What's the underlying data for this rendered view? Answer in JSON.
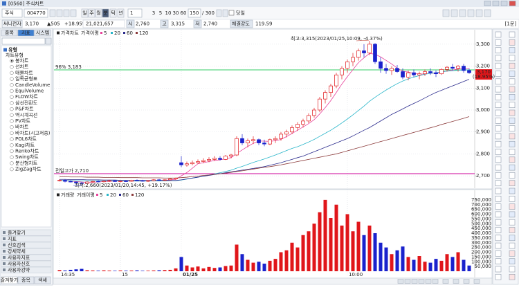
{
  "window": {
    "title": "[0560] 주식차트"
  },
  "toolbar": {
    "market": "주식",
    "code": "004770",
    "periods": [
      "일",
      "주",
      "월",
      "분",
      "틱",
      "년"
    ],
    "interval": "1",
    "quick_intervals": [
      "3",
      "5",
      "10",
      "30",
      "60"
    ],
    "count": "150",
    "max_count": "/ 300",
    "today": "당일",
    "unit": "[1분]"
  },
  "quote": {
    "name": "써니전자",
    "price": "3,170",
    "change": "▲505",
    "change_pct": "+18.95%",
    "volume": "21,021,657",
    "open_label": "시",
    "open": "2,760",
    "high_label": "고",
    "high": "3,315",
    "low_label": "저",
    "low": "2,740",
    "strength_label": "체결강도",
    "strength": "119.59"
  },
  "left_panel": {
    "tabs": [
      "종목",
      "지표",
      "시스템"
    ],
    "tree": [
      "유형",
      "차트유형"
    ],
    "items": [
      "봉차트",
      "선차트",
      "매물차트",
      "일목균형표",
      "CandleVolume",
      "EquiVolume",
      "FLOW차트",
      "삼선전환도",
      "P&F차트",
      "역시계곡선",
      "PV차트",
      "바차트",
      "바차트(시고저종)",
      "POL6차트",
      "Kagi차트",
      "Renko차트",
      "Swing차트",
      "분산형차트",
      "ZigZag차트"
    ],
    "sections": [
      "즐겨찾기",
      "지표",
      "신호검색",
      "강세약세",
      "사용자지표",
      "사용자신호",
      "사용자강약"
    ],
    "bottom_tabs": [
      "즐겨찾기",
      "종목",
      "색세"
    ]
  },
  "chart_data": [
    {
      "type": "candlestick",
      "legend_title": "가격차트",
      "ma_label": "가격이평",
      "up_color": "#e0161a",
      "down_color": "#1a22cc",
      "grid": true,
      "ylim": [
        2650,
        3350
      ],
      "yticks": [
        {
          "value": 2700,
          "label": "2,700"
        },
        {
          "value": 2800,
          "label": "2,800"
        },
        {
          "value": 2900,
          "label": "2,900"
        },
        {
          "value": 3000,
          "label": "3,000"
        },
        {
          "value": 3100,
          "label": "3,100"
        },
        {
          "value": 3200,
          "label": "3,200"
        },
        {
          "value": 3300,
          "label": "3,300"
        }
      ],
      "open": [
        2680,
        2680,
        2675,
        2672,
        2668,
        2665,
        2672,
        2675,
        2673,
        2676,
        2678,
        2674,
        2676,
        2675,
        2680,
        2678,
        2676,
        2678,
        2682,
        2680,
        2682,
        2686,
        2760,
        2750,
        2755,
        2760,
        2765,
        2770,
        2775,
        2780,
        2775,
        2790,
        2795,
        2870,
        2850,
        2860,
        2865,
        2850,
        2845,
        2865,
        2870,
        2890,
        2900,
        2920,
        2935,
        2950,
        2975,
        3000,
        3050,
        3080,
        3110,
        3160,
        3190,
        3220,
        3240,
        3270,
        3260,
        3300,
        3220,
        3190,
        3180,
        3190,
        3175,
        3150,
        3170,
        3160,
        3165,
        3175,
        3170,
        3165,
        3185,
        3195,
        3190,
        3200,
        3180
      ],
      "high": [
        2685,
        2685,
        2680,
        2675,
        2672,
        2675,
        2678,
        2680,
        2678,
        2682,
        2680,
        2678,
        2680,
        2682,
        2684,
        2682,
        2680,
        2685,
        2686,
        2684,
        2690,
        2692,
        2790,
        2765,
        2770,
        2775,
        2780,
        2785,
        2790,
        2790,
        2795,
        2800,
        2880,
        2890,
        2870,
        2880,
        2870,
        2865,
        2870,
        2880,
        2900,
        2910,
        2930,
        2945,
        2960,
        2985,
        3010,
        3060,
        3090,
        3120,
        3170,
        3200,
        3230,
        3260,
        3280,
        3300,
        3315,
        3305,
        3240,
        3210,
        3200,
        3205,
        3190,
        3180,
        3185,
        3175,
        3185,
        3190,
        3180,
        3190,
        3200,
        3210,
        3205,
        3210,
        3190
      ],
      "low": [
        2675,
        2670,
        2670,
        2665,
        2660,
        2665,
        2668,
        2670,
        2670,
        2672,
        2672,
        2670,
        2672,
        2673,
        2676,
        2674,
        2672,
        2675,
        2678,
        2676,
        2680,
        2682,
        2740,
        2742,
        2748,
        2755,
        2758,
        2762,
        2768,
        2770,
        2772,
        2780,
        2790,
        2840,
        2830,
        2845,
        2840,
        2835,
        2840,
        2850,
        2860,
        2875,
        2890,
        2905,
        2920,
        2940,
        2965,
        2990,
        3030,
        3060,
        3100,
        3140,
        3170,
        3200,
        3225,
        3240,
        3250,
        3210,
        3170,
        3165,
        3160,
        3170,
        3140,
        3135,
        3150,
        3140,
        3155,
        3160,
        3150,
        3160,
        3175,
        3180,
        3175,
        3170,
        3165
      ],
      "close": [
        2680,
        2675,
        2672,
        2668,
        2665,
        2672,
        2675,
        2673,
        2676,
        2678,
        2674,
        2676,
        2675,
        2680,
        2678,
        2676,
        2678,
        2682,
        2680,
        2682,
        2686,
        2690,
        2750,
        2755,
        2760,
        2765,
        2770,
        2775,
        2780,
        2775,
        2790,
        2795,
        2870,
        2850,
        2860,
        2865,
        2850,
        2845,
        2865,
        2870,
        2890,
        2900,
        2920,
        2935,
        2950,
        2975,
        3000,
        3050,
        3080,
        3110,
        3160,
        3190,
        3220,
        3240,
        3270,
        3260,
        3300,
        3220,
        3190,
        3180,
        3190,
        3175,
        3150,
        3170,
        3160,
        3165,
        3175,
        3170,
        3165,
        3185,
        3195,
        3190,
        3200,
        3180,
        3170
      ],
      "series": [
        {
          "name": "5",
          "color": "#e8409a",
          "values": [
            2680,
            2678,
            2676,
            2674,
            2672,
            2670,
            2671,
            2672,
            2674,
            2675,
            2676,
            2676,
            2676,
            2676,
            2677,
            2677,
            2677,
            2678,
            2679,
            2680,
            2682,
            2684,
            2700,
            2715,
            2735,
            2755,
            2760,
            2765,
            2770,
            2773,
            2778,
            2783,
            2802,
            2818,
            2834,
            2848,
            2859,
            2858,
            2857,
            2860,
            2866,
            2879,
            2893,
            2908,
            2923,
            2938,
            2956,
            2982,
            3011,
            3043,
            3080,
            3118,
            3152,
            3184,
            3216,
            3238,
            3258,
            3254,
            3242,
            3226,
            3210,
            3191,
            3177,
            3173,
            3167,
            3164,
            3164,
            3168,
            3167,
            3171,
            3178,
            3182,
            3187,
            3190,
            3187
          ]
        },
        {
          "name": "20",
          "color": "#27b5c9",
          "values": [
            2679,
            2679,
            2678,
            2678,
            2677,
            2677,
            2677,
            2677,
            2677,
            2677,
            2677,
            2677,
            2676,
            2676,
            2676,
            2676,
            2676,
            2677,
            2677,
            2677,
            2678,
            2678,
            2681,
            2685,
            2690,
            2694,
            2699,
            2704,
            2709,
            2714,
            2720,
            2726,
            2735,
            2743,
            2752,
            2761,
            2769,
            2777,
            2786,
            2795,
            2805,
            2815,
            2825,
            2833,
            2843,
            2854,
            2866,
            2880,
            2894,
            2908,
            2924,
            2941,
            2959,
            2978,
            2998,
            3018,
            3040,
            3058,
            3075,
            3091,
            3106,
            3120,
            3132,
            3142,
            3150,
            3157,
            3163,
            3167,
            3170,
            3174,
            3177,
            3179,
            3181,
            3182,
            3183
          ]
        },
        {
          "name": "60",
          "color": "#2a2a8c",
          "values": [
            2684,
            2684,
            2683,
            2683,
            2683,
            2682,
            2682,
            2682,
            2681,
            2681,
            2681,
            2680,
            2680,
            2680,
            2680,
            2679,
            2679,
            2679,
            2679,
            2679,
            2679,
            2679,
            2682,
            2686,
            2690,
            2694,
            2698,
            2702,
            2706,
            2710,
            2714,
            2718,
            2722,
            2726,
            2730,
            2734,
            2738,
            2742,
            2748,
            2754,
            2760,
            2768,
            2775,
            2783,
            2790,
            2800,
            2810,
            2820,
            2830,
            2840,
            2850,
            2860,
            2870,
            2882,
            2895,
            2908,
            2920,
            2935,
            2950,
            2965,
            2980,
            2992,
            3005,
            3018,
            3030,
            3042,
            3055,
            3068,
            3080,
            3090,
            3100,
            3110,
            3120,
            3130,
            3140
          ]
        },
        {
          "name": "120",
          "color": "#8b3a3a",
          "values": [
            2696,
            2696,
            2695,
            2695,
            2695,
            2694,
            2694,
            2694,
            2693,
            2693,
            2693,
            2692,
            2692,
            2692,
            2692,
            2691,
            2691,
            2691,
            2691,
            2690,
            2690,
            2690,
            2692,
            2694,
            2697,
            2699,
            2702,
            2704,
            2707,
            2709,
            2712,
            2716,
            2720,
            2723,
            2727,
            2731,
            2735,
            2739,
            2742,
            2746,
            2750,
            2755,
            2760,
            2765,
            2770,
            2775,
            2780,
            2785,
            2790,
            2795,
            2800,
            2807,
            2814,
            2821,
            2828,
            2835,
            2842,
            2849,
            2856,
            2863,
            2870,
            2877,
            2884,
            2891,
            2898,
            2905,
            2912,
            2919,
            2926,
            2934,
            2941,
            2948,
            2955,
            2962,
            2970
          ]
        }
      ],
      "hlines": [
        {
          "label": "96% 3,183",
          "value": 3183,
          "color": "#33cc66"
        },
        {
          "label": "전일고가 2,710",
          "value": 2710,
          "color": "#cc0099"
        }
      ],
      "annotations": {
        "high": "최고:3,315(2023/01/25,10:09, -4.37%)",
        "low": "최저:2,660(2023/01/20,14:45, +19.17%)"
      },
      "last_label": {
        "value": 3170,
        "label": "3,170",
        "change": "(18.95%)",
        "color": "#e0161a"
      }
    },
    {
      "type": "bar",
      "legend_title": "거래량",
      "ma_label": "거래이평",
      "ma_legend": [
        {
          "name": "5",
          "color": "#e8409a"
        },
        {
          "name": "20",
          "color": "#27b5c9"
        },
        {
          "name": "60",
          "color": "#2a2a8c"
        },
        {
          "name": "120",
          "color": "#8b3a3a"
        }
      ],
      "categories": [
        "14:35",
        null,
        null,
        null,
        null,
        null,
        null,
        null,
        null,
        null,
        null,
        "15",
        null,
        null,
        null,
        null,
        null,
        null,
        null,
        null,
        null,
        null,
        "01/25",
        null,
        null,
        null,
        null,
        null,
        null,
        null,
        null,
        null,
        null,
        null,
        null,
        null,
        null,
        null,
        null,
        null,
        null,
        null,
        null,
        null,
        null,
        null,
        null,
        null,
        null,
        null,
        null,
        null,
        "10:00",
        null,
        null,
        null,
        null,
        null,
        null,
        null,
        null,
        null,
        null,
        null,
        null,
        null,
        null,
        null,
        null,
        null,
        null,
        null,
        null,
        null,
        null
      ],
      "values": [
        12000,
        8000,
        15000,
        20000,
        25000,
        10000,
        8000,
        6000,
        9000,
        7000,
        5000,
        8000,
        6000,
        7000,
        9000,
        5000,
        6000,
        8000,
        10000,
        12000,
        15000,
        30000,
        150000,
        60000,
        40000,
        50000,
        30000,
        45000,
        35000,
        40000,
        55000,
        60000,
        280000,
        180000,
        120000,
        90000,
        100000,
        80000,
        110000,
        130000,
        200000,
        220000,
        300000,
        250000,
        380000,
        420000,
        500000,
        620000,
        750000,
        560000,
        700000,
        480000,
        600000,
        420000,
        520000,
        380000,
        480000,
        400000,
        300000,
        250000,
        180000,
        220000,
        260000,
        150000,
        120000,
        160000,
        100000,
        90000,
        130000,
        110000,
        180000,
        150000,
        200000,
        120000,
        60000
      ],
      "ylim": [
        0,
        800000
      ],
      "yticks": [
        {
          "value": 50000,
          "label": "50,000"
        },
        {
          "value": 100000,
          "label": "100,000"
        },
        {
          "value": 150000,
          "label": "150,000"
        },
        {
          "value": 200000,
          "label": "200,000"
        },
        {
          "value": 250000,
          "label": "250,000"
        },
        {
          "value": 300000,
          "label": "300,000"
        },
        {
          "value": 350000,
          "label": "350,000"
        },
        {
          "value": 400000,
          "label": "400,000"
        },
        {
          "value": 450000,
          "label": "450,000"
        },
        {
          "value": 500000,
          "label": "500,000"
        },
        {
          "value": 550000,
          "label": "550,000"
        },
        {
          "value": 600000,
          "label": "600,000"
        },
        {
          "value": 650000,
          "label": "650,000"
        },
        {
          "value": 700000,
          "label": "700,000"
        },
        {
          "value": 750000,
          "label": "750,000"
        }
      ]
    }
  ]
}
